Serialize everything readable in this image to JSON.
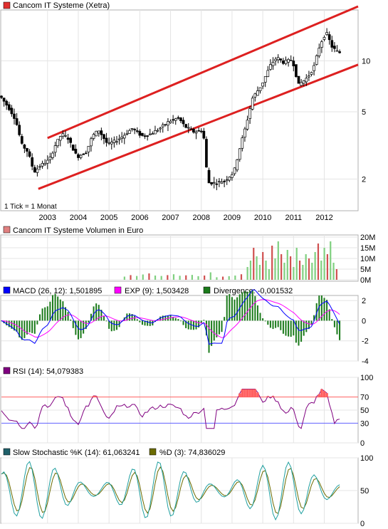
{
  "chart_data": [
    {
      "type": "candlestick",
      "title": "Cancom IT Systeme (Xetra)",
      "legend_color": "#e0302f",
      "note": "1 Tick = 1 Monat",
      "x_ticks": [
        "2003",
        "2004",
        "2005",
        "2006",
        "2007",
        "2008",
        "2009",
        "2010",
        "2011",
        "2012"
      ],
      "y_scale": "log",
      "y_ticks": [
        10,
        5,
        2
      ],
      "ylim": [
        1.3,
        20
      ],
      "trend_lines": [
        {
          "name": "upper",
          "from": {
            "x": 2003.5,
            "y": 3.5
          },
          "to": {
            "x": 2013.6,
            "y": 21
          }
        },
        {
          "name": "lower",
          "from": {
            "x": 2003.2,
            "y": 1.75
          },
          "to": {
            "x": 2013.6,
            "y": 9.5
          }
        }
      ],
      "series_points": [
        {
          "x": 2002.0,
          "y": 6.2
        },
        {
          "x": 2002.3,
          "y": 5.2
        },
        {
          "x": 2002.5,
          "y": 4.5
        },
        {
          "x": 2002.7,
          "y": 3.2
        },
        {
          "x": 2002.9,
          "y": 2.9
        },
        {
          "x": 2003.1,
          "y": 2.2
        },
        {
          "x": 2003.3,
          "y": 2.4
        },
        {
          "x": 2003.6,
          "y": 2.6
        },
        {
          "x": 2003.8,
          "y": 3.2
        },
        {
          "x": 2004.0,
          "y": 3.7
        },
        {
          "x": 2004.2,
          "y": 3.5
        },
        {
          "x": 2004.5,
          "y": 2.7
        },
        {
          "x": 2004.8,
          "y": 2.9
        },
        {
          "x": 2005.0,
          "y": 3.6
        },
        {
          "x": 2005.2,
          "y": 3.9
        },
        {
          "x": 2005.5,
          "y": 3.2
        },
        {
          "x": 2005.8,
          "y": 3.4
        },
        {
          "x": 2006.0,
          "y": 3.6
        },
        {
          "x": 2006.3,
          "y": 4.0
        },
        {
          "x": 2006.6,
          "y": 3.6
        },
        {
          "x": 2006.9,
          "y": 3.7
        },
        {
          "x": 2007.2,
          "y": 4.0
        },
        {
          "x": 2007.5,
          "y": 4.4
        },
        {
          "x": 2007.8,
          "y": 4.6
        },
        {
          "x": 2008.0,
          "y": 4.1
        },
        {
          "x": 2008.3,
          "y": 3.8
        },
        {
          "x": 2008.6,
          "y": 3.9
        },
        {
          "x": 2008.75,
          "y": 1.9
        },
        {
          "x": 2009.0,
          "y": 1.9
        },
        {
          "x": 2009.3,
          "y": 1.95
        },
        {
          "x": 2009.6,
          "y": 2.2
        },
        {
          "x": 2009.8,
          "y": 3.1
        },
        {
          "x": 2010.0,
          "y": 4.2
        },
        {
          "x": 2010.2,
          "y": 6.0
        },
        {
          "x": 2010.5,
          "y": 7.2
        },
        {
          "x": 2010.8,
          "y": 9.5
        },
        {
          "x": 2011.0,
          "y": 10.5
        },
        {
          "x": 2011.2,
          "y": 9.8
        },
        {
          "x": 2011.5,
          "y": 10.2
        },
        {
          "x": 2011.7,
          "y": 7.2
        },
        {
          "x": 2012.0,
          "y": 8.0
        },
        {
          "x": 2012.2,
          "y": 9.2
        },
        {
          "x": 2012.4,
          "y": 12.5
        },
        {
          "x": 2012.6,
          "y": 14.8
        },
        {
          "x": 2012.8,
          "y": 12.0
        },
        {
          "x": 2013.0,
          "y": 11.2
        }
      ]
    },
    {
      "type": "bar",
      "title": "Cancom IT Systeme Volumen in Euro",
      "legend_color": "#e08080",
      "y_ticks": [
        "20M",
        "15M",
        "10M",
        "5M",
        "0M"
      ],
      "ylim": [
        0,
        20000000
      ],
      "x": [
        2006.0,
        2006.2,
        2006.4,
        2006.6,
        2006.8,
        2007.0,
        2007.2,
        2007.4,
        2007.6,
        2007.8,
        2008.0,
        2008.2,
        2008.4,
        2008.6,
        2008.8,
        2009.0,
        2009.2,
        2009.4,
        2009.6,
        2009.8,
        2010.0,
        2010.1,
        2010.2,
        2010.3,
        2010.4,
        2010.5,
        2010.6,
        2010.7,
        2010.8,
        2010.9,
        2011.0,
        2011.1,
        2011.2,
        2011.3,
        2011.4,
        2011.5,
        2011.6,
        2011.7,
        2011.8,
        2011.9,
        2012.0,
        2012.1,
        2012.2,
        2012.3,
        2012.4,
        2012.5,
        2012.6,
        2012.7,
        2012.8,
        2012.9
      ],
      "values": [
        1500000,
        2200000,
        1800000,
        2500000,
        3000000,
        2000000,
        1800000,
        2200000,
        2600000,
        1900000,
        2100000,
        2300000,
        1700000,
        2000000,
        3500000,
        1200000,
        1500000,
        1700000,
        2000000,
        2600000,
        6000000,
        9000000,
        15000000,
        11000000,
        7000000,
        13000000,
        9000000,
        5000000,
        16000000,
        10000000,
        18000000,
        12000000,
        8000000,
        14000000,
        11000000,
        6000000,
        15000000,
        9000000,
        7000000,
        12000000,
        10000000,
        8000000,
        13000000,
        17000000,
        9000000,
        15000000,
        12000000,
        18000000,
        8000000,
        5000000
      ]
    },
    {
      "type": "line",
      "title": "MACD (26, 12)",
      "series": [
        {
          "name": "MACD (26, 12): 1,501895",
          "color": "#0000ff"
        },
        {
          "name": "EXP (9): 1,503428",
          "color": "#ff00ff"
        },
        {
          "name": "Divergence: -0,001532",
          "color": "#1a7a1a"
        }
      ],
      "y_ticks": [
        2,
        0,
        -2,
        -4
      ],
      "ylim": [
        -4,
        2.5
      ]
    },
    {
      "type": "line",
      "title": "RSI (14): 54,079383",
      "series": [
        {
          "name": "RSI (14): 54,079383",
          "color": "#800080"
        }
      ],
      "y_ticks": [
        100,
        70,
        50,
        30,
        0
      ],
      "ylim": [
        0,
        100
      ],
      "levels": [
        70,
        30
      ]
    },
    {
      "type": "line",
      "title": "Slow Stochastic",
      "series": [
        {
          "name": "Slow Stochastic %K (14): 61,063241",
          "color": "#20606a"
        },
        {
          "name": "%D (3): 74,836029",
          "color": "#6b6b00"
        }
      ],
      "y_ticks": [
        100,
        50,
        0
      ],
      "ylim": [
        0,
        100
      ]
    }
  ]
}
